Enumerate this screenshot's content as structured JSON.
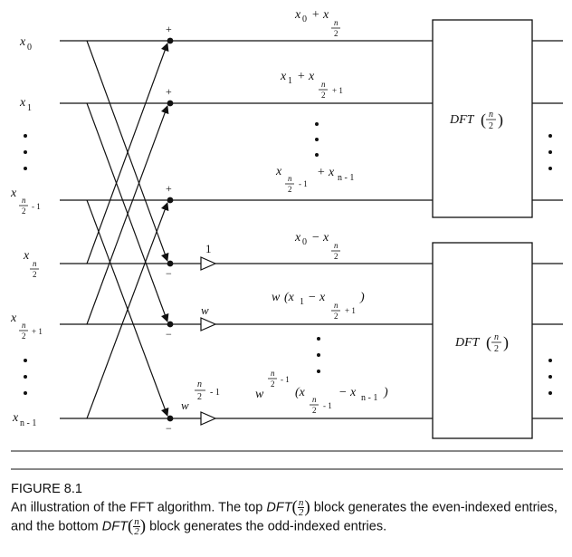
{
  "diagram": {
    "inputs": {
      "x0": {
        "base": "x",
        "sub": "0"
      },
      "x1": {
        "base": "x",
        "sub": "1"
      },
      "xh1": {
        "base": "x",
        "num": "n",
        "den": "2",
        "tail": "- 1"
      },
      "xh": {
        "base": "x",
        "num": "n",
        "den": "2"
      },
      "xh1p": {
        "base": "x",
        "num": "n",
        "den": "2",
        "tail": "+ 1"
      },
      "xn1": {
        "base": "x",
        "sub": "n - 1"
      }
    },
    "signs": {
      "plus": "+",
      "minus": "−"
    },
    "gains": {
      "one": "1",
      "w": "w",
      "w_pow": "w",
      "pow_num": "n",
      "pow_den": "2",
      "pow_tail": "- 1"
    },
    "outputs": {
      "sum0": {
        "a": "x",
        "a_sub": "0",
        "op": "+ x",
        "num": "n",
        "den": "2"
      },
      "sum1": {
        "a": "x",
        "a_sub": "1",
        "op": "+ x",
        "num": "n",
        "den": "2",
        "tail": "+ 1"
      },
      "sumL": {
        "a": "x",
        "num": "n",
        "den": "2",
        "tail": "- 1",
        "op": "+ x",
        "b_sub": "n - 1"
      },
      "diff0": {
        "a": "x",
        "a_sub": "0",
        "op": "− x",
        "num": "n",
        "den": "2"
      },
      "diff1": {
        "w": "w",
        "open": "(x",
        "a_sub": "1",
        "op": "− x",
        "num": "n",
        "den": "2",
        "tail": "+ 1",
        "close": ")"
      },
      "diffL": {
        "w": "w",
        "pow_num": "n",
        "pow_den": "2",
        "pow_tail": "- 1",
        "open": "(x",
        "num": "n",
        "den": "2",
        "tail": "- 1",
        "op": "− x",
        "b_sub": "n - 1",
        "close": ")"
      }
    },
    "blocks": {
      "top": {
        "label": "DFT",
        "num": "n",
        "den": "2"
      },
      "bottom": {
        "label": "DFT",
        "num": "n",
        "den": "2"
      }
    }
  },
  "caption": {
    "title": "FIGURE 8.1",
    "line1_pre": "An illustration of the FFT algorithm. The top ",
    "line1_mid": " block generates the even-indexed entries, and the bottom ",
    "line1_post": " block generates the odd-indexed entries.",
    "dft": "DFT",
    "num": "n",
    "den": "2"
  }
}
